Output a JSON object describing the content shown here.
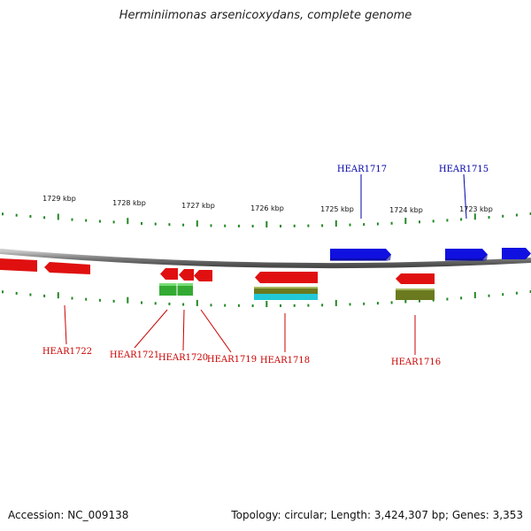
{
  "title": "Herminiimonas arsenicoxydans, complete genome",
  "footer": {
    "accession": "Accession: NC_009138",
    "summary": "Topology: circular; Length: 3,424,307 bp; Genes: 3,353"
  },
  "colors": {
    "backbone": "#8a8a8a",
    "tick": "#228822",
    "forward_gene": "#1010e0",
    "reverse_gene": "#e01010",
    "feature_green": "#33aa33",
    "feature_olive": "#6b7a1f",
    "feature_cyan": "#22c8d8",
    "forward_label": "#0000aa",
    "reverse_label": "#cc0000"
  },
  "kbp_ticks": [
    "1729 kbp",
    "1728 kbp",
    "1727 kbp",
    "1726 kbp",
    "1725 kbp",
    "1724 kbp",
    "1723 kbp"
  ],
  "forward_labels": [
    "HEAR1717",
    "HEAR1715"
  ],
  "reverse_labels": [
    "HEAR1722",
    "HEAR1721",
    "HEAR1720",
    "HEAR1719",
    "HEAR1718",
    "HEAR1716"
  ]
}
